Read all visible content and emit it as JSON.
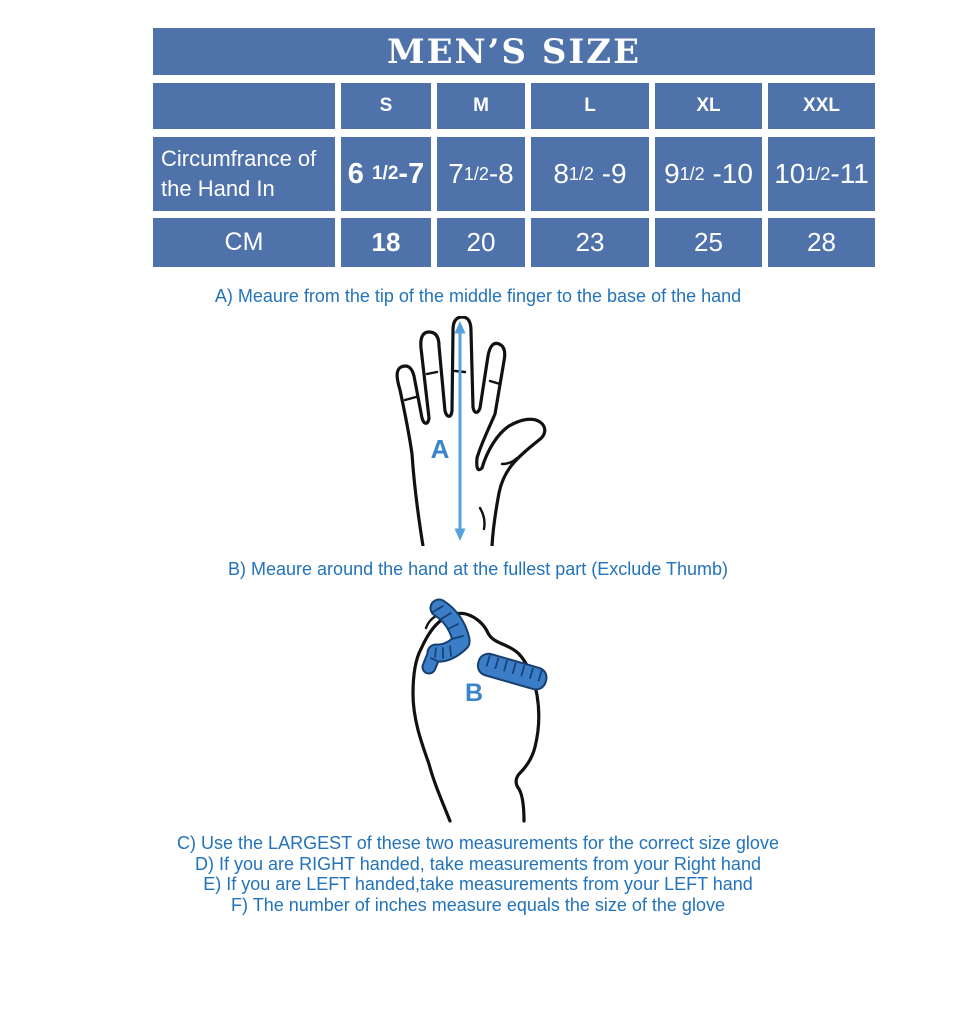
{
  "colors": {
    "table_blue": "#4e72a9",
    "text_blue": "#2273bb",
    "label_blue": "#3c85cc",
    "arrow_blue": "#55a1de",
    "tape_blue": "#3c7dc8",
    "tape_outline": "#16406f"
  },
  "size_table": {
    "title": "MEN’S SIZE",
    "size_headers": [
      "S",
      "M",
      "L",
      "XL",
      "XXL"
    ],
    "inches_row": {
      "label": "Circumfrance of the Hand In",
      "cells": [
        {
          "pre": "6 ",
          "frac": "1/2",
          "post": "-7",
          "bold": true
        },
        {
          "pre": "7",
          "frac": "1/2",
          "post": "-8",
          "bold": false
        },
        {
          "pre": "8",
          "frac": "1/2",
          "post": " -9",
          "bold": false
        },
        {
          "pre": "9",
          "frac": "1/2",
          "post": " -10",
          "bold": false
        },
        {
          "pre": "10",
          "frac": "1/2",
          "post": "-11",
          "bold": false
        }
      ]
    },
    "cm_row": {
      "label": "CM",
      "values": [
        "18",
        "20",
        "23",
        "25",
        "28"
      ]
    }
  },
  "instructions": {
    "line_a": "A) Meaure from the tip of the middle finger to the base of the hand",
    "line_b": "B) Meaure around the hand at the fullest part (Exclude Thumb)",
    "line_c": "C) Use the LARGEST of these two measurements for the correct size glove",
    "line_d": "D) If you are RIGHT handed, take measurements from your Right hand",
    "line_e": "E) If you are LEFT handed,take measurements from your LEFT hand",
    "line_f": "F) The number of inches measure equals the size of the glove"
  },
  "diagrams": {
    "hand_label": "A",
    "fist_label": "B"
  }
}
